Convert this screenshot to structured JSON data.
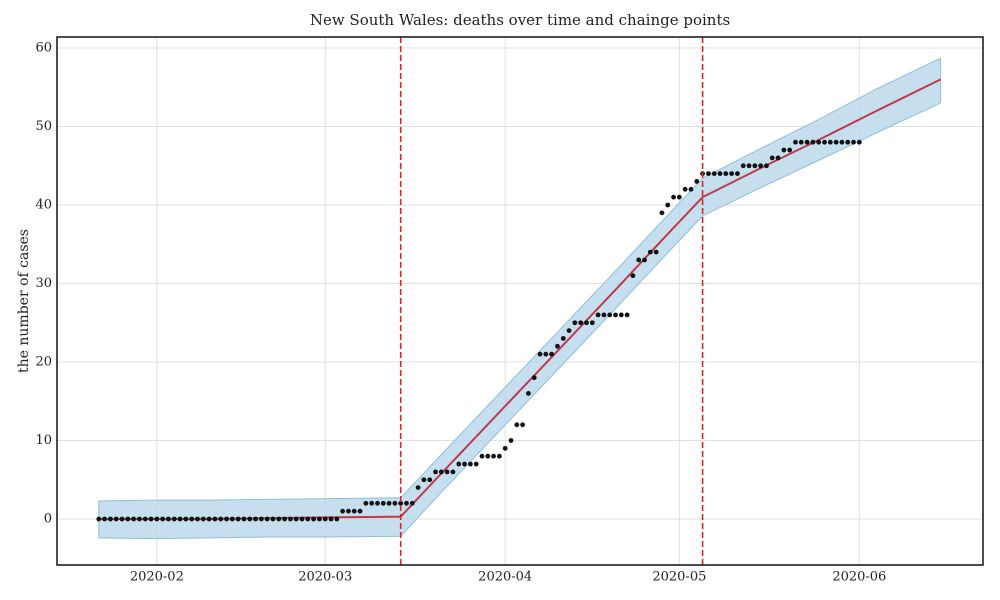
{
  "chart_data": {
    "type": "scatter",
    "title": "New South Wales: deaths over time and chainge points",
    "y_label": "the number of cases",
    "xlim": [
      13.8,
      173.3
    ],
    "ylim": [
      -5.86,
      61.4
    ],
    "xticks": [
      {
        "value": 31,
        "label": "2020-02"
      },
      {
        "value": 60,
        "label": "2020-03"
      },
      {
        "value": 91,
        "label": "2020-04"
      },
      {
        "value": 121,
        "label": "2020-05"
      },
      {
        "value": 152,
        "label": "2020-06"
      }
    ],
    "yticks": [
      0,
      10,
      20,
      30,
      40,
      50,
      60
    ],
    "grid": true,
    "points": {
      "color": "#111111",
      "x": [
        21,
        22,
        23,
        24,
        25,
        26,
        27,
        28,
        29,
        30,
        31,
        32,
        33,
        34,
        35,
        36,
        37,
        38,
        39,
        40,
        41,
        42,
        43,
        44,
        45,
        46,
        47,
        48,
        49,
        50,
        51,
        52,
        53,
        54,
        55,
        56,
        57,
        58,
        59,
        60,
        61,
        62,
        63,
        64,
        65,
        66,
        67,
        68,
        69,
        70,
        71,
        72,
        73,
        74,
        75,
        76,
        77,
        78,
        79,
        80,
        81,
        82,
        83,
        84,
        85,
        86,
        87,
        88,
        89,
        90,
        91,
        92,
        93,
        94,
        95,
        96,
        97,
        98,
        99,
        100,
        101,
        102,
        103,
        104,
        105,
        106,
        107,
        108,
        109,
        110,
        111,
        112,
        113,
        114,
        115,
        116,
        117,
        118,
        119,
        120,
        121,
        122,
        123,
        124,
        125,
        126,
        127,
        128,
        129,
        130,
        131,
        132,
        133,
        134,
        135,
        136,
        137,
        138,
        139,
        140,
        141,
        142,
        143,
        144,
        145,
        146,
        147,
        148,
        149,
        150,
        151,
        152
      ],
      "values": [
        0,
        0,
        0,
        0,
        0,
        0,
        0,
        0,
        0,
        0,
        0,
        0,
        0,
        0,
        0,
        0,
        0,
        0,
        0,
        0,
        0,
        0,
        0,
        0,
        0,
        0,
        0,
        0,
        0,
        0,
        0,
        0,
        0,
        0,
        0,
        0,
        0,
        0,
        0,
        0,
        0,
        0,
        1,
        1,
        1,
        1,
        2,
        2,
        2,
        2,
        2,
        2,
        2,
        2,
        2,
        4,
        5,
        5,
        6,
        6,
        6,
        6,
        7,
        7,
        7,
        7,
        8,
        8,
        8,
        8,
        9,
        10,
        12,
        12,
        16,
        18,
        21,
        21,
        21,
        22,
        23,
        24,
        25,
        25,
        25,
        25,
        26,
        26,
        26,
        26,
        26,
        26,
        31,
        33,
        33,
        34,
        34,
        39,
        40,
        41,
        41,
        42,
        42,
        43,
        44,
        44,
        44,
        44,
        44,
        44,
        44,
        45,
        45,
        45,
        45,
        45,
        46,
        46,
        47,
        47,
        48,
        48,
        48,
        48,
        48,
        48,
        48,
        48,
        48,
        48,
        48,
        48
      ]
    },
    "forecast": {
      "color": "#c0394b",
      "band_color": "#b6d7ea",
      "band_edge": "#8fbedb",
      "x": [
        21,
        30,
        40,
        50,
        60,
        73,
        80,
        90,
        100,
        110,
        120,
        125,
        135,
        145,
        155,
        166
      ],
      "values": [
        0,
        0,
        0,
        0.1,
        0.2,
        0.3,
        5.8,
        13.6,
        21.4,
        29.2,
        37.1,
        41,
        44.7,
        48.3,
        52,
        56
      ],
      "lower": [
        -2.4,
        -2.5,
        -2.4,
        -2.3,
        -2.3,
        -2.2,
        3.4,
        11.2,
        19,
        26.8,
        34.7,
        38.6,
        42.2,
        45.7,
        49.2,
        53
      ],
      "upper": [
        2.3,
        2.4,
        2.4,
        2.5,
        2.6,
        2.7,
        8.2,
        16,
        23.8,
        31.6,
        39.5,
        43.4,
        47.2,
        50.9,
        54.8,
        58.7
      ]
    },
    "changepoints": [
      73,
      125
    ],
    "changepoint_color": "#d62728"
  }
}
